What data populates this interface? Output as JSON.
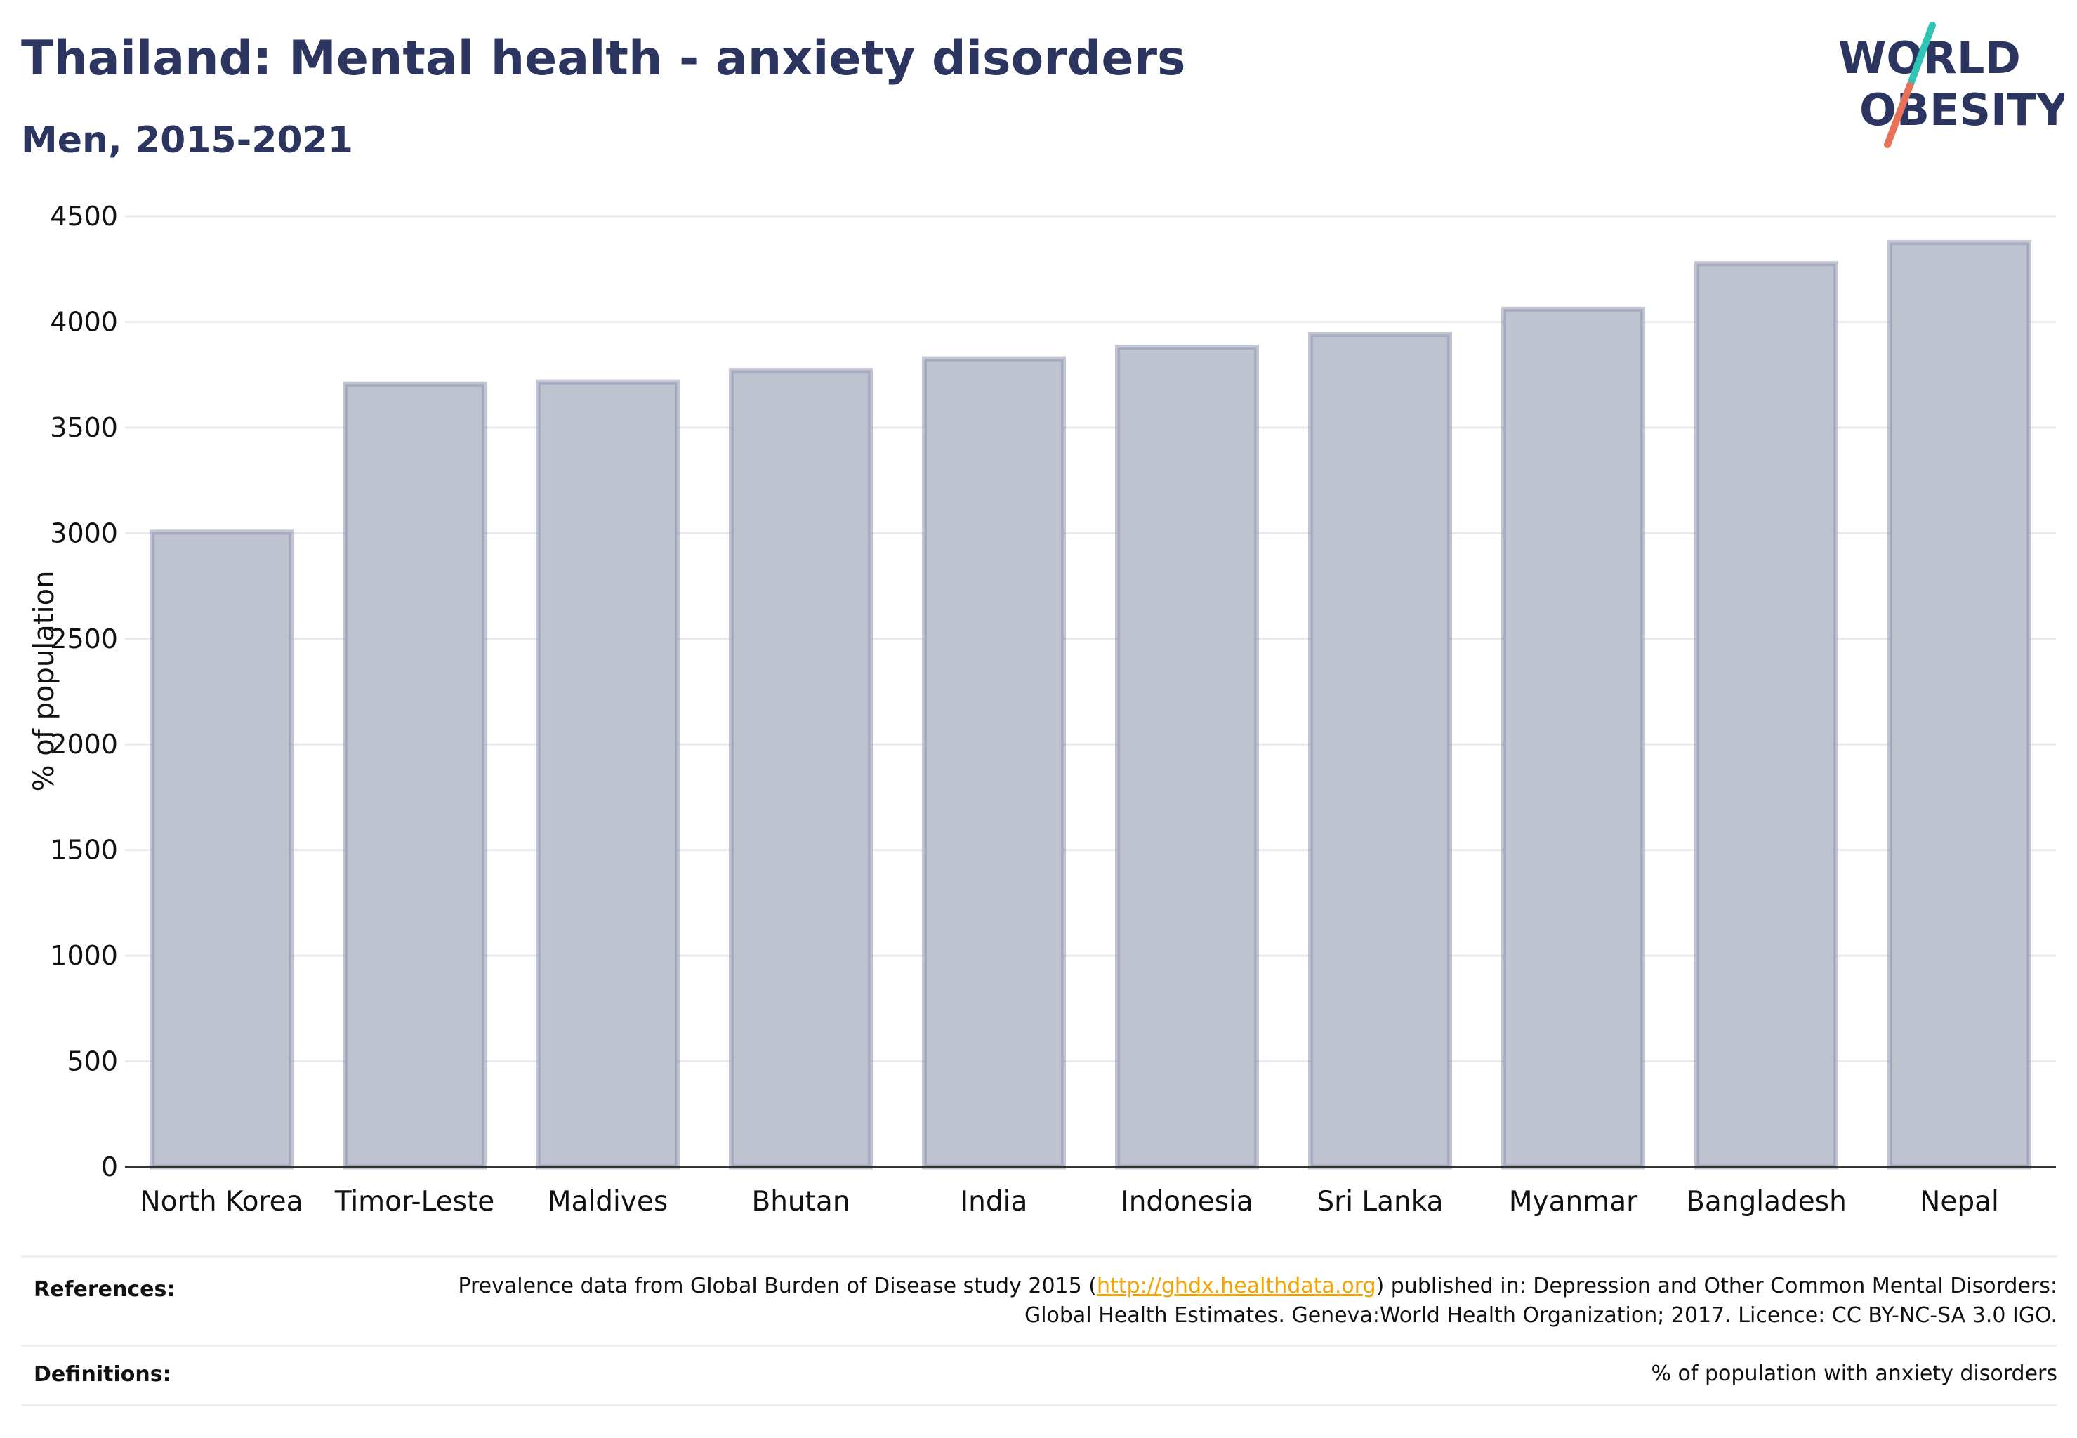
{
  "header": {
    "title": "Thailand: Mental health - anxiety disorders",
    "subtitle": "Men, 2015-2021"
  },
  "logo": {
    "line1": "WORLD",
    "line2": "OBESITY",
    "colors": {
      "text": "#2b3560",
      "slash_top": "#2ec4b6",
      "slash_bottom": "#e8715a"
    }
  },
  "chart_data": {
    "type": "bar",
    "categories": [
      "North Korea",
      "Timor-Leste",
      "Maldives",
      "Bhutan",
      "India",
      "Indonesia",
      "Sri Lanka",
      "Myanmar",
      "Bangladesh",
      "Nepal"
    ],
    "values": [
      3005,
      3705,
      3715,
      3770,
      3825,
      3880,
      3940,
      4060,
      4275,
      4375
    ],
    "ylabel": "% of population",
    "xlabel": "",
    "ylim": [
      0,
      4500
    ],
    "yticks": [
      0,
      500,
      1000,
      1500,
      2000,
      2500,
      3000,
      3500,
      4000,
      4500
    ],
    "grid": true,
    "colors": {
      "bar_fill": "#bfc3d0",
      "bar_stroke": "#8f96b0",
      "grid": "#e8e9ee",
      "axis": "#333333"
    }
  },
  "footer": {
    "references_label": "References:",
    "references_text_before": "Prevalence data from Global Burden of Disease study 2015 (",
    "references_link": "http://ghdx.healthdata.org",
    "references_text_after": ") published in: Depression and Other Common Mental Disorders: Global Health Estimates. Geneva:World Health Organization; 2017. Licence: CC BY-NC-SA 3.0 IGO.",
    "definitions_label": "Definitions:",
    "definitions_text": "% of population with anxiety disorders"
  }
}
